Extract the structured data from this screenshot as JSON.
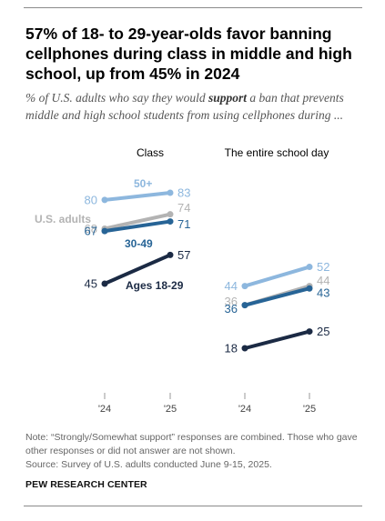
{
  "title": "57% of 18- to 29-year-olds favor banning cellphones during class in middle and high school, up from 45% in 2024",
  "subtitle": {
    "before": "% of U.S. adults who say they would ",
    "emphasis": "support",
    "after": " a ban that prevents middle and high school students from using cellphones during ..."
  },
  "note": "Note: “Strongly/Somewhat support” responses are combined. Those who gave other responses or did not answer are not shown.",
  "source": "Source: Survey of U.S. adults conducted June 9-15, 2025.",
  "brand": "PEW RESEARCH CENTER",
  "chart_data": {
    "type": "line",
    "x": [
      "'24",
      "'25"
    ],
    "ylim": [
      18,
      83
    ],
    "grid": false,
    "series_colors": {
      "50+": "#8db7de",
      "U.S. adults": "#b3b3b3",
      "30-49": "#276496",
      "Ages 18-29": "#1b2a44"
    },
    "panels": [
      {
        "title": "Class",
        "series": [
          {
            "name": "50+",
            "values": [
              80,
              83
            ]
          },
          {
            "name": "U.S. adults",
            "values": [
              68,
              74
            ]
          },
          {
            "name": "30-49",
            "values": [
              67,
              71
            ]
          },
          {
            "name": "Ages 18-29",
            "values": [
              45,
              57
            ]
          }
        ]
      },
      {
        "title": "The entire school day",
        "series": [
          {
            "name": "",
            "values": [
              44,
              52
            ]
          },
          {
            "name": "",
            "values": [
              36,
              44
            ]
          },
          {
            "name": "",
            "values": [
              36,
              43
            ]
          },
          {
            "name": "",
            "values": [
              18,
              25
            ]
          }
        ]
      }
    ]
  }
}
